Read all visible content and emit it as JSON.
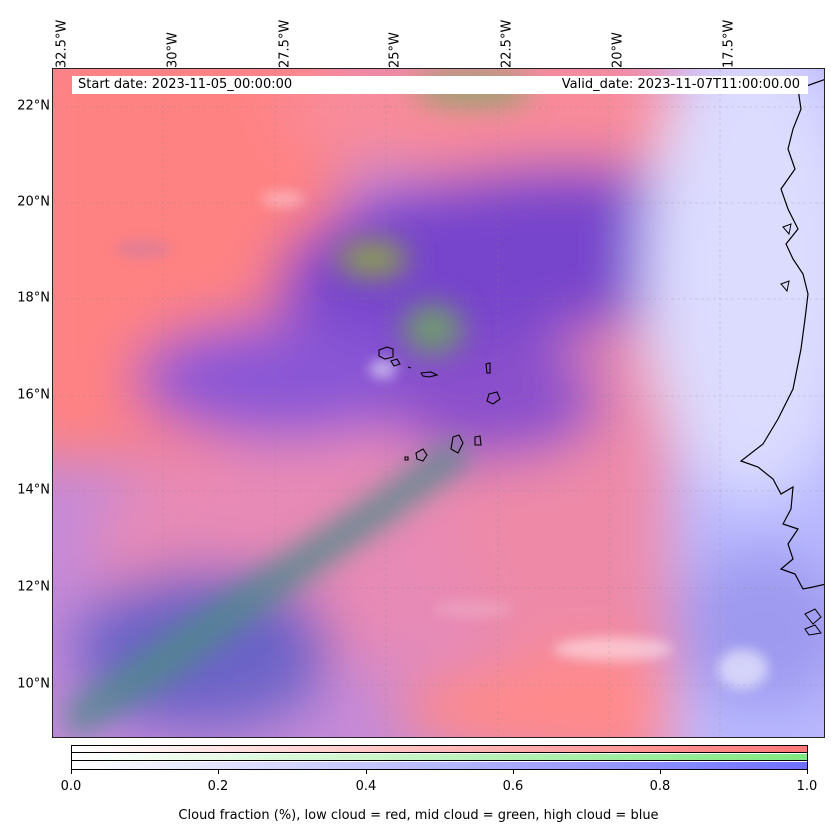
{
  "map": {
    "lon_labels": [
      "32.5°W",
      "30°W",
      "27.5°W",
      "25°W",
      "22.5°W",
      "20°W",
      "17.5°W"
    ],
    "lat_labels": [
      "22°N",
      "20°N",
      "18°N",
      "16°N",
      "14°N",
      "12°N",
      "10°N"
    ],
    "start_date": "Start date: 2023-11-05_00:00:00",
    "valid_date": "Valid_date: 2023-11-07T11:00:00.00",
    "colors": {
      "low_cloud": "#ff7777",
      "mid_cloud": "#80e880",
      "high_cloud": "#6f6fff"
    }
  },
  "colorbar": {
    "ticks": [
      "0.0",
      "0.2",
      "0.4",
      "0.6",
      "0.8",
      "1.0"
    ],
    "label": "Cloud fraction (%), low cloud = red, mid cloud = green, high cloud = blue"
  }
}
